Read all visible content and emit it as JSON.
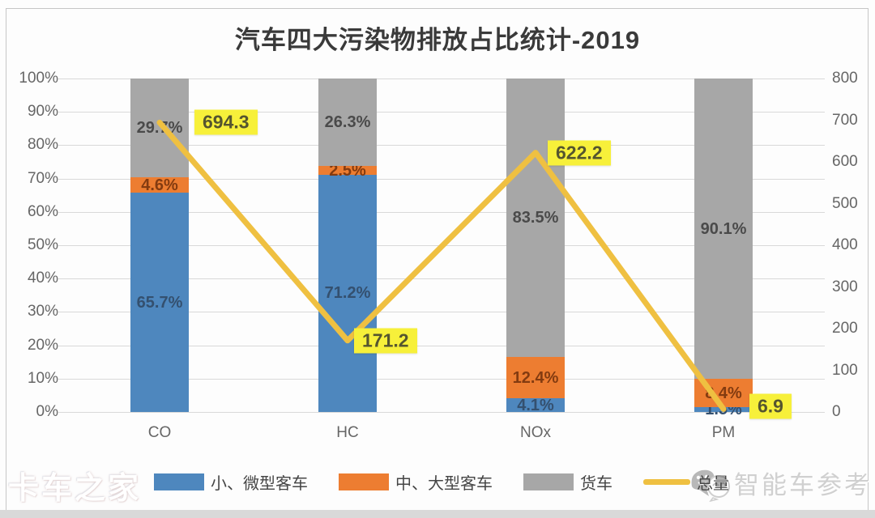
{
  "title": "汽车四大污染物排放占比统计-2019",
  "watermarks": {
    "left": "卡车之家",
    "right": "智能车参考"
  },
  "chart_data": {
    "type": "bar",
    "subtype": "100%-stacked-columns-with-total-line",
    "title": "汽车四大污染物排放占比统计-2019",
    "categories": [
      "CO",
      "HC",
      "NOx",
      "PM"
    ],
    "series": [
      {
        "name": "小、微型客车",
        "type": "bar",
        "color": "#4E87BE",
        "label_color": "#34506F",
        "unit": "%",
        "values": [
          65.7,
          71.2,
          4.1,
          1.5
        ]
      },
      {
        "name": "中、大型客车",
        "type": "bar",
        "color": "#ED7D31",
        "label_color": "#833B10",
        "unit": "%",
        "values": [
          4.6,
          2.5,
          12.4,
          8.4
        ]
      },
      {
        "name": "货车",
        "type": "bar",
        "color": "#A7A7A7",
        "label_color": "#4A4A4A",
        "unit": "%",
        "values": [
          29.7,
          26.3,
          83.5,
          90.1
        ]
      }
    ],
    "line_series": {
      "name": "总量",
      "type": "line",
      "color": "#EFC041",
      "label_bg": "#F7F03A",
      "label_color": "#55552F",
      "values": [
        694.3,
        171.2,
        622.2,
        6.9
      ]
    },
    "left_axis": {
      "min": 0,
      "max": 100,
      "unit": "%",
      "ticks": [
        "100%",
        "90%",
        "80%",
        "70%",
        "60%",
        "50%",
        "40%",
        "30%",
        "20%",
        "10%",
        "0%"
      ]
    },
    "right_axis": {
      "min": 0,
      "max": 800,
      "ticks": [
        "800",
        "700",
        "600",
        "500",
        "400",
        "300",
        "200",
        "100",
        "0"
      ]
    },
    "grid": true,
    "legend_position": "bottom"
  }
}
